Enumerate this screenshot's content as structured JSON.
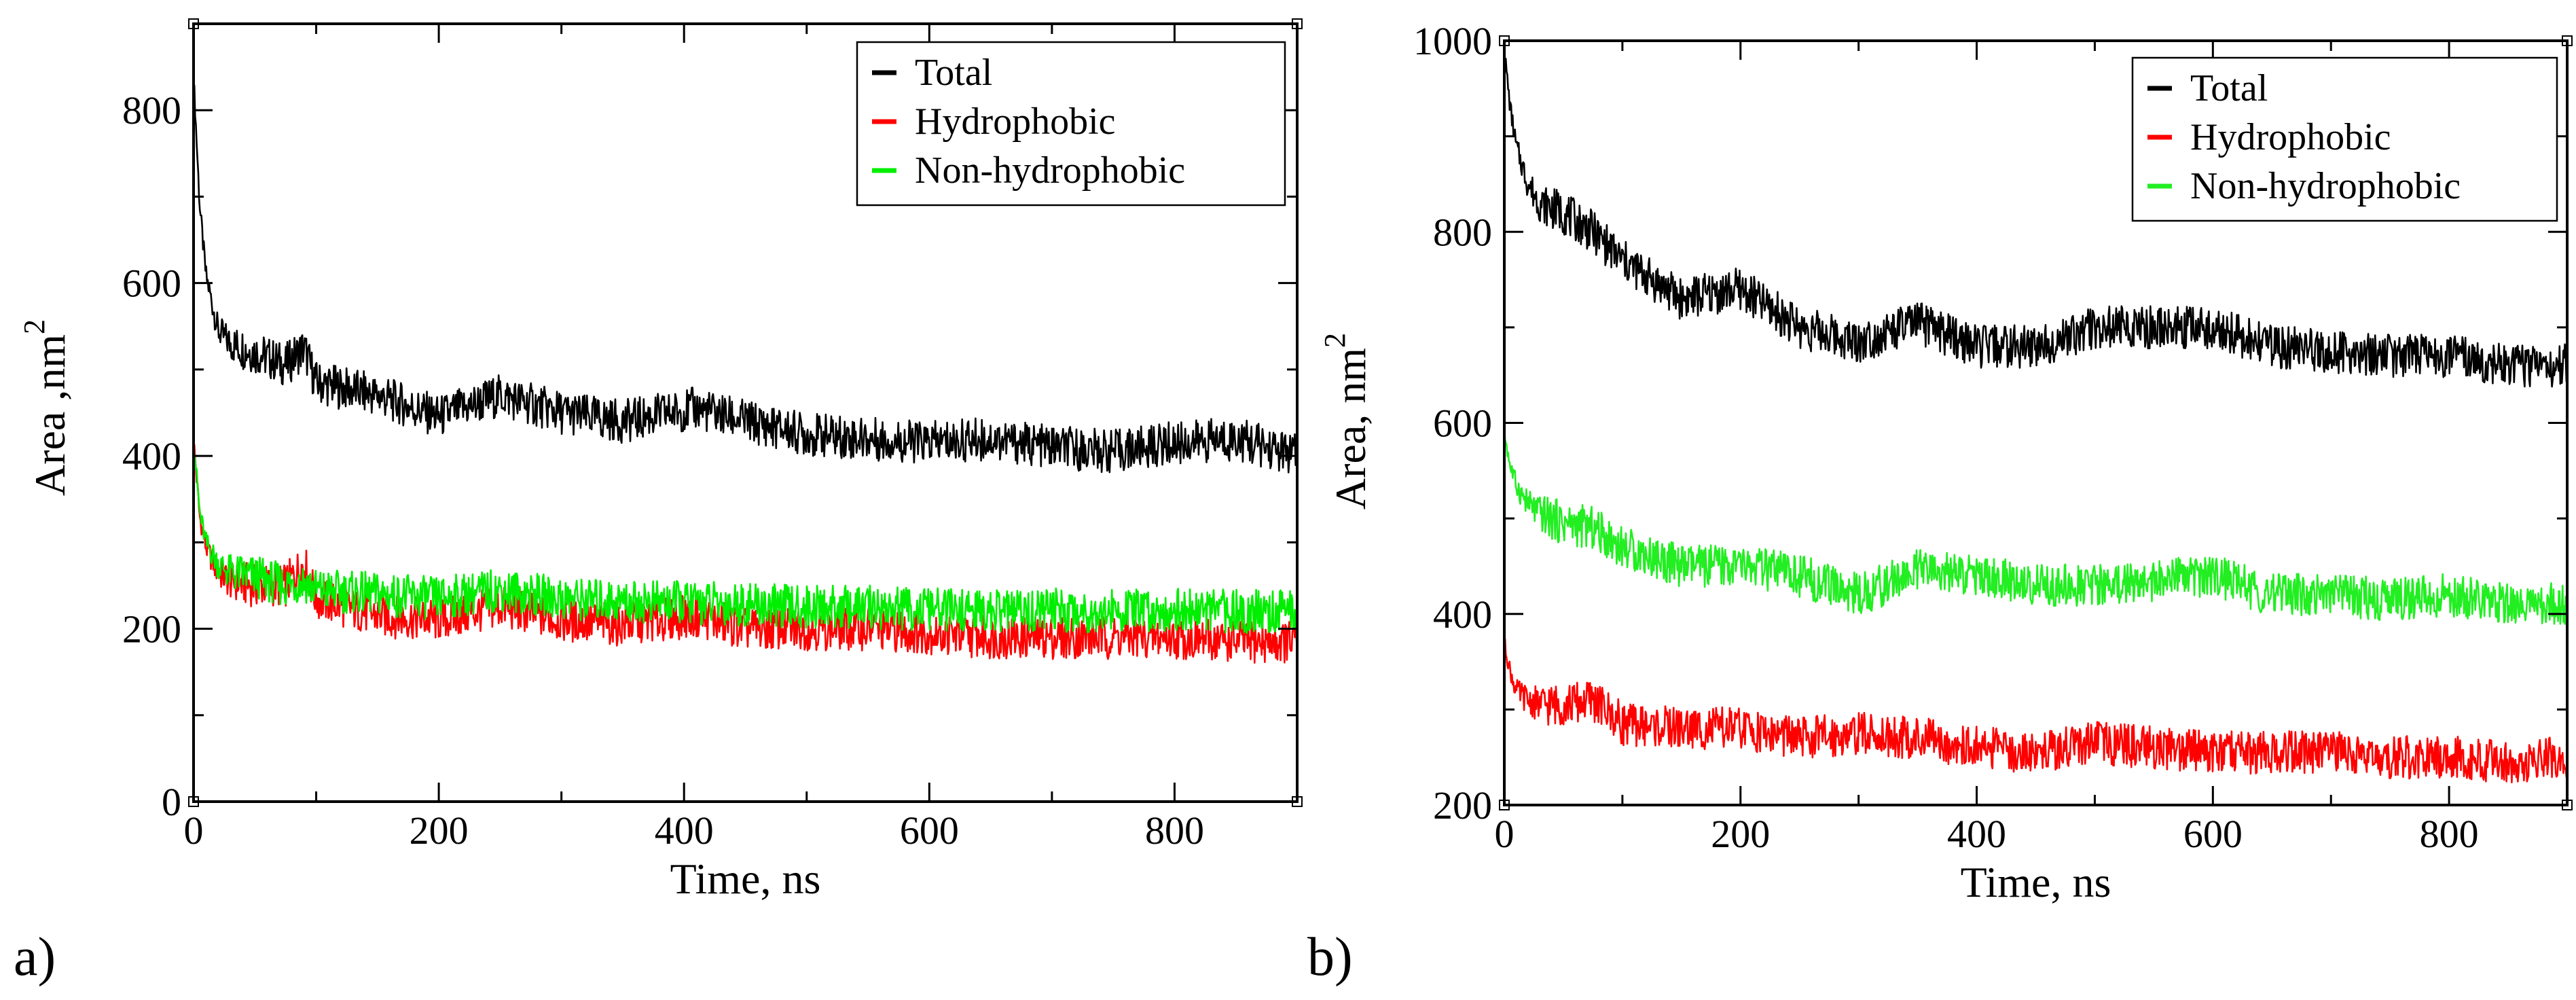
{
  "panels": [
    {
      "id": "a",
      "label": "a)"
    },
    {
      "id": "b",
      "label": "b)"
    }
  ],
  "chart_data": [
    {
      "type": "line",
      "panel": "a)",
      "title": "",
      "xlabel": "Time, ns",
      "ylabel": "Area ,nm",
      "ylabel_superscript": "2",
      "xlim": [
        0,
        900
      ],
      "ylim": [
        0,
        900
      ],
      "xticks": [
        0,
        200,
        400,
        600,
        800
      ],
      "yticks": [
        0,
        200,
        400,
        600,
        800
      ],
      "grid": false,
      "legend_position": "top-right",
      "series": [
        {
          "name": "Total",
          "color": "#000000",
          "x": [
            0,
            5,
            10,
            20,
            30,
            50,
            75,
            90,
            100,
            150,
            200,
            250,
            300,
            350,
            410,
            450,
            500,
            550,
            600,
            650,
            700,
            750,
            800,
            850,
            900
          ],
          "y": [
            840,
            690,
            610,
            545,
            530,
            520,
            505,
            525,
            485,
            470,
            445,
            470,
            450,
            440,
            455,
            440,
            425,
            420,
            415,
            420,
            410,
            405,
            415,
            420,
            400
          ]
        },
        {
          "name": "Hydrophobic",
          "color": "#ff0000",
          "x": [
            0,
            5,
            10,
            20,
            30,
            50,
            75,
            90,
            100,
            150,
            200,
            250,
            300,
            350,
            410,
            450,
            500,
            550,
            600,
            650,
            700,
            750,
            800,
            850,
            900
          ],
          "y": [
            420,
            330,
            295,
            265,
            255,
            250,
            250,
            275,
            235,
            215,
            210,
            225,
            210,
            205,
            215,
            200,
            200,
            200,
            195,
            190,
            190,
            190,
            190,
            185,
            185
          ]
        },
        {
          "name": "Non-hydrophobic",
          "color": "#00ee00",
          "x": [
            0,
            5,
            10,
            20,
            30,
            50,
            75,
            90,
            100,
            150,
            200,
            250,
            300,
            350,
            410,
            450,
            500,
            550,
            600,
            650,
            700,
            750,
            800,
            850,
            900
          ],
          "y": [
            420,
            335,
            300,
            275,
            265,
            260,
            250,
            255,
            245,
            240,
            235,
            245,
            235,
            232,
            230,
            228,
            225,
            225,
            222,
            220,
            222,
            220,
            222,
            220,
            220
          ]
        }
      ]
    },
    {
      "type": "line",
      "panel": "b)",
      "title": "",
      "xlabel": "Time, ns",
      "ylabel": "Area, nm",
      "ylabel_superscript": "2",
      "xlim": [
        0,
        900
      ],
      "ylim": [
        200,
        1000
      ],
      "xticks": [
        0,
        200,
        400,
        600,
        800
      ],
      "yticks": [
        200,
        400,
        600,
        800,
        1000
      ],
      "grid": false,
      "legend_position": "top-right",
      "series": [
        {
          "name": "Total",
          "color": "#000000",
          "x": [
            0,
            5,
            10,
            20,
            30,
            50,
            75,
            100,
            150,
            200,
            250,
            300,
            350,
            400,
            450,
            500,
            550,
            600,
            650,
            700,
            750,
            800,
            850,
            900
          ],
          "y": [
            990,
            930,
            890,
            850,
            830,
            820,
            800,
            770,
            730,
            740,
            700,
            685,
            705,
            680,
            680,
            700,
            700,
            700,
            680,
            675,
            670,
            670,
            660,
            660
          ]
        },
        {
          "name": "Hydrophobic",
          "color": "#ff0000",
          "x": [
            0,
            5,
            10,
            20,
            30,
            50,
            75,
            100,
            150,
            200,
            250,
            300,
            350,
            400,
            450,
            500,
            550,
            600,
            650,
            700,
            750,
            800,
            850,
            900
          ],
          "y": [
            370,
            340,
            320,
            310,
            305,
            305,
            310,
            285,
            280,
            280,
            270,
            275,
            270,
            260,
            255,
            265,
            260,
            255,
            255,
            255,
            250,
            250,
            245,
            250
          ]
        },
        {
          "name": "Non-hydrophobic",
          "color": "#22ee22",
          "x": [
            0,
            5,
            10,
            20,
            30,
            50,
            75,
            100,
            150,
            200,
            250,
            300,
            350,
            400,
            450,
            500,
            550,
            600,
            650,
            700,
            750,
            800,
            850,
            900
          ],
          "y": [
            590,
            555,
            535,
            515,
            505,
            495,
            490,
            470,
            450,
            450,
            440,
            420,
            445,
            440,
            430,
            430,
            435,
            440,
            420,
            420,
            415,
            420,
            410,
            410
          ]
        }
      ]
    }
  ]
}
